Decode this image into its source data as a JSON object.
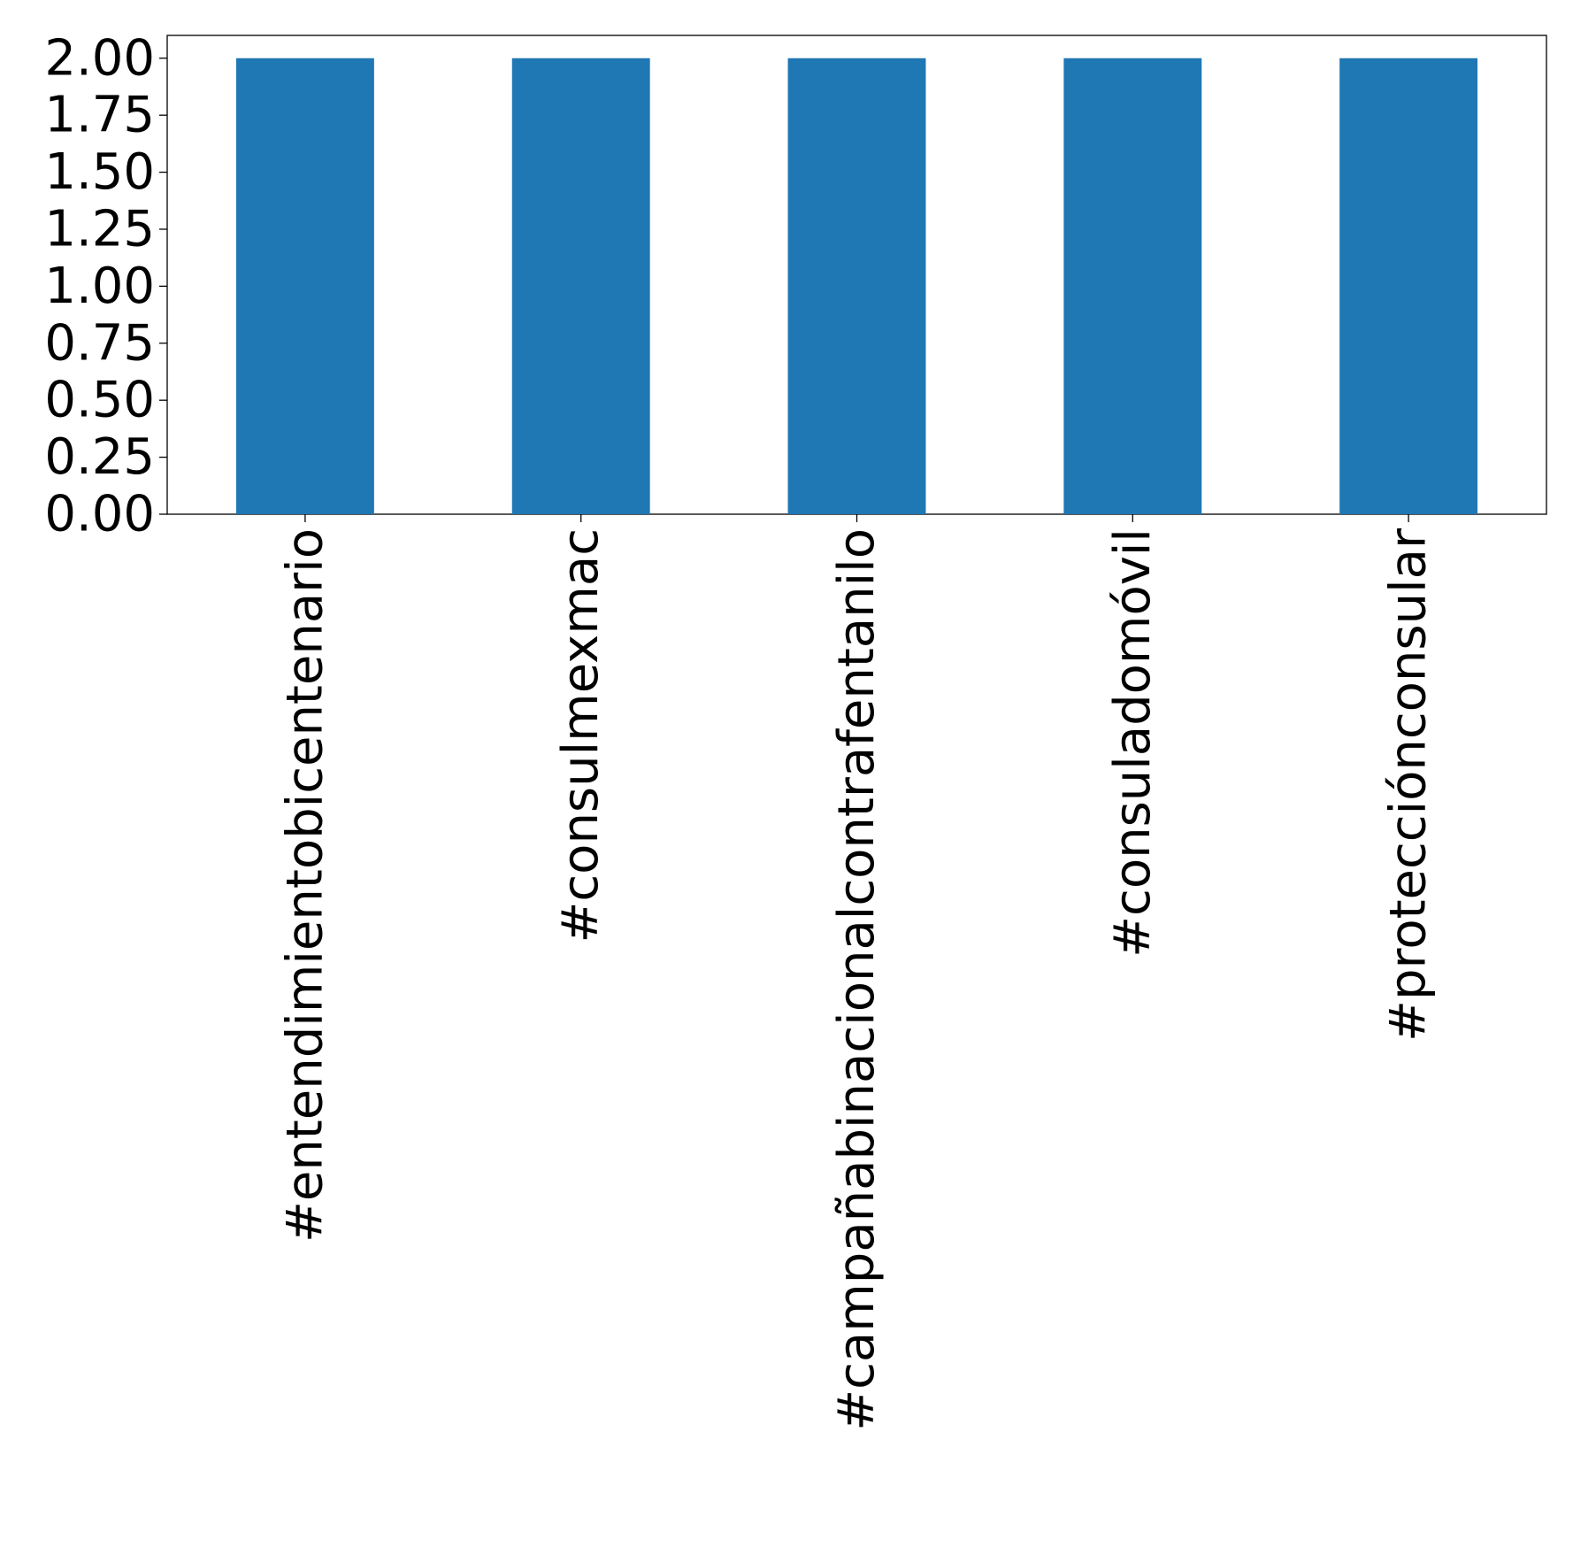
{
  "chart_data": {
    "type": "bar",
    "categories": [
      "#entendimientobicentenario",
      "#consulmexmac",
      "#campañabinacionalcontrafentanilo",
      "#consuladomóvil",
      "#protecciónconsular"
    ],
    "values": [
      2,
      2,
      2,
      2,
      2
    ],
    "color": "#1f77b4",
    "ylim": [
      0,
      2.1
    ],
    "yticks": [
      {
        "value": 0,
        "label": "0.00"
      },
      {
        "value": 0.25,
        "label": "0.25"
      },
      {
        "value": 0.5,
        "label": "0.50"
      },
      {
        "value": 0.75,
        "label": "0.75"
      },
      {
        "value": 1,
        "label": "1.00"
      },
      {
        "value": 1.25,
        "label": "1.25"
      },
      {
        "value": 1.5,
        "label": "1.50"
      },
      {
        "value": 1.75,
        "label": "1.75"
      },
      {
        "value": 2,
        "label": "2.00"
      }
    ],
    "grid": false
  }
}
